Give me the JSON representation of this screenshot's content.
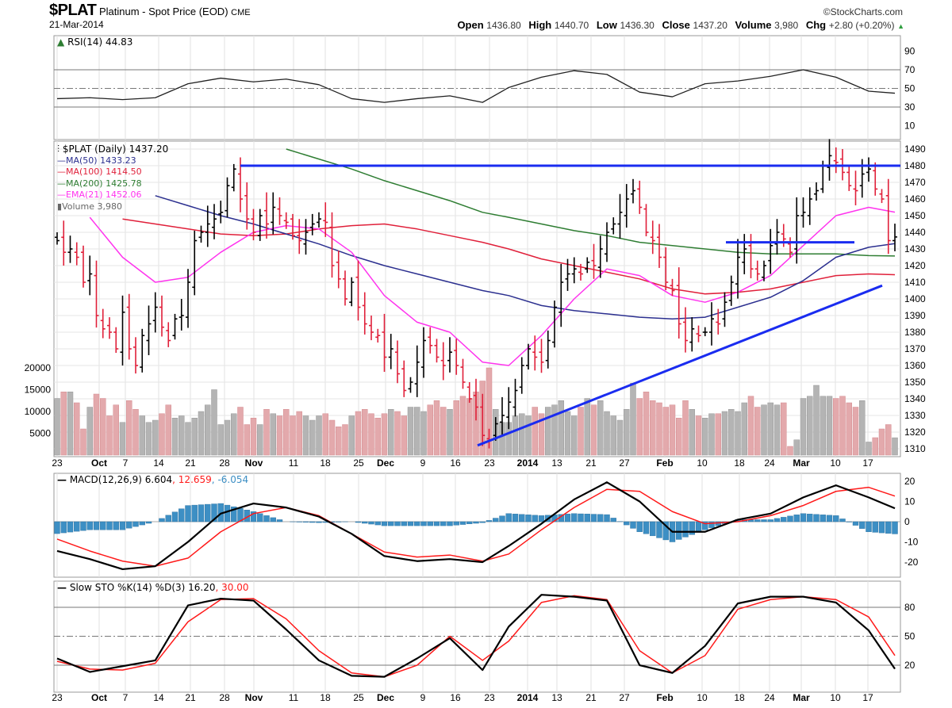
{
  "header": {
    "symbol": "$PLAT",
    "name": "Platinum - Spot Price (EOD)",
    "exchange": "CME",
    "date": "21-Mar-2014",
    "copyright": "©StockCharts.com",
    "open_label": "Open",
    "open": "1436.80",
    "high_label": "High",
    "high": "1440.70",
    "low_label": "Low",
    "low": "1436.30",
    "close_label": "Close",
    "close": "1437.20",
    "volume_label": "Volume",
    "volume": "3,980",
    "chg_label": "Chg",
    "chg": "+2.80 (+0.20%)",
    "chg_icon": "up-triangle-icon"
  },
  "legends": {
    "rsi": "RSI(14) 44.83",
    "price": "$PLAT (Daily) 1437.20",
    "ma50": "MA(50) 1433.23",
    "ma100": "MA(100) 1414.50",
    "ma200": "MA(200) 1425.78",
    "ema21": "EMA(21) 1452.06",
    "volume": "Volume 3,980",
    "macd_name": "MACD(12,26,9)",
    "macd_v1": "6.604",
    "macd_v2": "12.659",
    "macd_v3": "-6.054",
    "sto_name": "Slow STO %K(14) %D(3)",
    "sto_v1": "16.20",
    "sto_v2": "30.00"
  },
  "colors": {
    "up": "#000000",
    "down": "#e0203a",
    "vol_up": "#b4b4b4",
    "vol_down": "#e3a9ac",
    "ma50": "#2b2f8f",
    "ma100": "#e0203a",
    "ma200": "#2e7d32",
    "ema21": "#ff33ee",
    "trendline": "#1a2cf0",
    "macd": "#000000",
    "signal": "#ff1a1a",
    "histogram": "#3d8fc4"
  },
  "chart_data": [
    {
      "type": "line",
      "name": "RSI",
      "yticks": [
        90,
        70,
        50,
        30,
        10
      ],
      "ylim": [
        0,
        100
      ],
      "levels": [
        70,
        50,
        30
      ],
      "weekly_values": [
        39,
        40,
        38,
        40,
        55,
        61,
        57,
        60,
        54,
        39,
        35,
        39,
        42,
        35,
        51,
        62,
        69,
        65,
        46,
        41,
        55,
        58,
        63,
        70,
        62,
        47
      ],
      "last": 44.83
    },
    {
      "type": "ohlc",
      "name": "$PLAT (Daily)",
      "ylim": [
        1305,
        1495
      ],
      "yticks": [
        1490,
        1480,
        1470,
        1460,
        1450,
        1440,
        1430,
        1420,
        1410,
        1400,
        1390,
        1380,
        1370,
        1360,
        1350,
        1340,
        1330,
        1320,
        1310
      ],
      "week_starts": [
        "09-23",
        "09-30",
        "10-07",
        "10-14",
        "10-21",
        "10-28",
        "11-04",
        "11-11",
        "11-18",
        "11-25",
        "12-02",
        "12-09",
        "12-16",
        "12-23",
        "12-30",
        "01-06",
        "01-13",
        "01-20",
        "01-27",
        "02-03",
        "02-10",
        "02-17",
        "02-24",
        "03-03",
        "03-10",
        "03-17"
      ],
      "closes": [
        1435,
        1428,
        1430,
        1425,
        1410,
        1415,
        1390,
        1382,
        1380,
        1370,
        1392,
        1370,
        1360,
        1378,
        1385,
        1395,
        1383,
        1375,
        1388,
        1390,
        1410,
        1435,
        1440,
        1445,
        1448,
        1452,
        1468,
        1478,
        1460,
        1448,
        1440,
        1450,
        1445,
        1455,
        1450,
        1446,
        1438,
        1435,
        1440,
        1445,
        1448,
        1446,
        1420,
        1412,
        1400,
        1410,
        1395,
        1385,
        1380,
        1378,
        1365,
        1370,
        1355,
        1345,
        1350,
        1362,
        1375,
        1372,
        1365,
        1360,
        1368,
        1360,
        1350,
        1340,
        1335,
        1318,
        1315,
        1325,
        1330,
        1338,
        1345,
        1360,
        1370,
        1365,
        1362,
        1375,
        1395,
        1410,
        1415,
        1418,
        1415,
        1422,
        1420,
        1430,
        1440,
        1445,
        1452,
        1460,
        1465,
        1455,
        1440,
        1435,
        1425,
        1410,
        1405,
        1385,
        1375,
        1382,
        1378,
        1380,
        1388,
        1385,
        1398,
        1410,
        1425,
        1430,
        1418,
        1415,
        1420,
        1432,
        1440,
        1436,
        1428,
        1450,
        1452,
        1460,
        1465,
        1480,
        1486,
        1482,
        1476,
        1468,
        1465,
        1475,
        1478,
        1466,
        1460,
        1435,
        1437.2
      ],
      "volume": {
        "yticks": [
          20000,
          15000,
          10000,
          5000
        ],
        "values": [
          13000,
          14500,
          14500,
          12000,
          6000,
          11000,
          14000,
          13000,
          9000,
          11500,
          7500,
          12500,
          10500,
          9000,
          7500,
          8000,
          9500,
          11500,
          8500,
          9000,
          7500,
          8500,
          10000,
          11500,
          15000,
          7000,
          8000,
          9500,
          11000,
          7000,
          8500,
          7000,
          10500,
          9500,
          9000,
          10500,
          9000,
          10000,
          9000,
          8000,
          9000,
          9500,
          8000,
          6500,
          7000,
          9000,
          10000,
          10500,
          9500,
          8500,
          9500,
          10500,
          10000,
          9000,
          11000,
          11000,
          10000,
          11500,
          12500,
          11000,
          10500,
          12500,
          13500,
          13000,
          14500,
          17000,
          20000,
          10500,
          7500,
          7500,
          9000,
          9500,
          9000,
          11000,
          9500,
          11000,
          11500,
          12500,
          10000,
          9000,
          11000,
          13000,
          11500,
          12500,
          10000,
          9000,
          8000,
          10500,
          16500,
          13000,
          14500,
          12500,
          12000,
          11000,
          11500,
          8500,
          12500,
          10500,
          9000,
          8500,
          9500,
          9500,
          10000,
          10500,
          10000,
          12000,
          13500,
          11000,
          11500,
          12000,
          11500,
          12000,
          2000,
          3500,
          13000,
          13500,
          16000,
          13500,
          13500,
          13000,
          13500,
          12000,
          11000,
          12500,
          3000,
          4000,
          6000,
          7000,
          3980
        ]
      },
      "overlays": {
        "ma50": {
          "weekly_values": [
            null,
            null,
            null,
            1462,
            1456,
            1450,
            1445,
            1439,
            1433,
            1426,
            1420,
            1415,
            1410,
            1405,
            1402,
            1396,
            1393,
            1391,
            1389,
            1388,
            1389,
            1395,
            1401,
            1411,
            1425,
            1431
          ],
          "last": 1433.23
        },
        "ma100": {
          "weekly_values": [
            null,
            null,
            1448,
            1445,
            1442,
            1439,
            1438,
            1439,
            1442,
            1444,
            1445,
            1442,
            1438,
            1434,
            1430,
            1424,
            1420,
            1416,
            1412,
            1406,
            1403,
            1404,
            1406,
            1410,
            1414,
            1415
          ],
          "last": 1414.5
        },
        "ma200": {
          "weekly_values": [
            null,
            null,
            null,
            null,
            null,
            null,
            null,
            1490,
            1484,
            1478,
            1471,
            1465,
            1459,
            1452,
            1449,
            1445,
            1441,
            1438,
            1434,
            1432,
            1430,
            1428,
            1427,
            1427,
            1427,
            1426
          ],
          "last": 1425.78
        },
        "ema21": {
          "weekly_values": [
            null,
            1449,
            1425,
            1410,
            1413,
            1428,
            1440,
            1444,
            1442,
            1428,
            1402,
            1386,
            1380,
            1362,
            1360,
            1378,
            1400,
            1418,
            1414,
            1402,
            1398,
            1404,
            1414,
            1432,
            1450,
            1455
          ],
          "last": 1452.06
        }
      },
      "trendlines": [
        {
          "from": [
            "10-28",
            1480
          ],
          "to": [
            "03-21",
            1480
          ]
        },
        {
          "from": [
            "02-14",
            1434
          ],
          "to": [
            "03-14",
            1434
          ]
        },
        {
          "from": [
            "12-20",
            1312
          ],
          "to": [
            "03-19",
            1408
          ]
        }
      ]
    },
    {
      "type": "line",
      "name": "MACD(12,26,9)",
      "yticks": [
        20,
        10,
        0,
        -10,
        -20
      ],
      "ylim": [
        -25,
        24
      ],
      "macd_weekly": [
        -14.5,
        -18.5,
        -23.5,
        -22,
        -10,
        4,
        9,
        7,
        2.5,
        -6,
        -17,
        -19.5,
        -18.5,
        -20,
        -12,
        -1,
        11,
        19.5,
        10,
        -5,
        -5,
        1,
        4,
        12,
        18,
        12
      ],
      "macd_last": 6.604,
      "signal_weekly": [
        -8.6,
        -14.5,
        -19.5,
        -22,
        -18,
        -5,
        4,
        7,
        3,
        -6,
        -15,
        -17.5,
        -16.5,
        -19.5,
        -16,
        -4,
        7,
        16,
        15,
        5,
        -1,
        0,
        3,
        8,
        15,
        17
      ],
      "signal_last": 12.659,
      "histogram_last": -6.054
    },
    {
      "type": "line",
      "name": "Slow STO %K(14) %D(3)",
      "yticks": [
        80,
        50,
        20
      ],
      "ylim": [
        -8,
        108
      ],
      "levels": [
        80,
        50,
        20
      ],
      "k_weekly": [
        27,
        13,
        19,
        25,
        82,
        89,
        87,
        57,
        25,
        9,
        8,
        27,
        48,
        15,
        60,
        93,
        91,
        87,
        20,
        12,
        40,
        84,
        91,
        91,
        85,
        56
      ],
      "k_last": 16.2,
      "d_weekly": [
        24,
        16,
        15,
        22,
        65,
        88,
        89,
        68,
        35,
        12,
        8,
        20,
        50,
        25,
        45,
        85,
        92,
        88,
        35,
        12,
        30,
        78,
        88,
        91,
        88,
        70
      ],
      "d_last": 30.0
    }
  ],
  "x_axis": {
    "labels": [
      "23",
      "Oct",
      "7",
      "14",
      "21",
      "28",
      "Nov",
      "11",
      "18",
      "25",
      "Dec",
      "9",
      "16",
      "23",
      "2014",
      "13",
      "21",
      "27",
      "Feb",
      "10",
      "18",
      "24",
      "Mar",
      "10",
      "17"
    ]
  }
}
